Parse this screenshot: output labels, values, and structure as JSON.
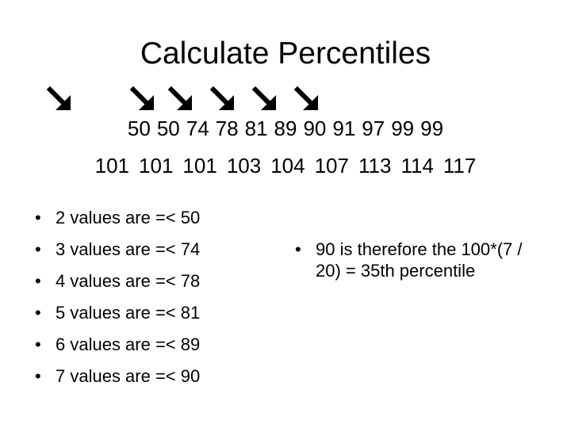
{
  "slide": {
    "title": "Calculate Percentiles",
    "arrow_glyph": "arrow-down-right-icon",
    "row1_values": [
      "50",
      "50",
      "74",
      "78",
      "81",
      "89",
      "90",
      "91",
      "97",
      "99",
      "99"
    ],
    "row2_values": [
      "101",
      "101",
      "101",
      "103",
      "104",
      "107",
      "113",
      "114",
      "117"
    ],
    "left_bullets": [
      "2 values are =< 50",
      "3 values are =< 74",
      "4 values are =< 78",
      "5 values are =< 81",
      "6 values are =< 89",
      "7 values are =< 90"
    ],
    "right_bullets": [
      "90 is therefore the 100*(7 / 20) = 35th percentile"
    ]
  }
}
